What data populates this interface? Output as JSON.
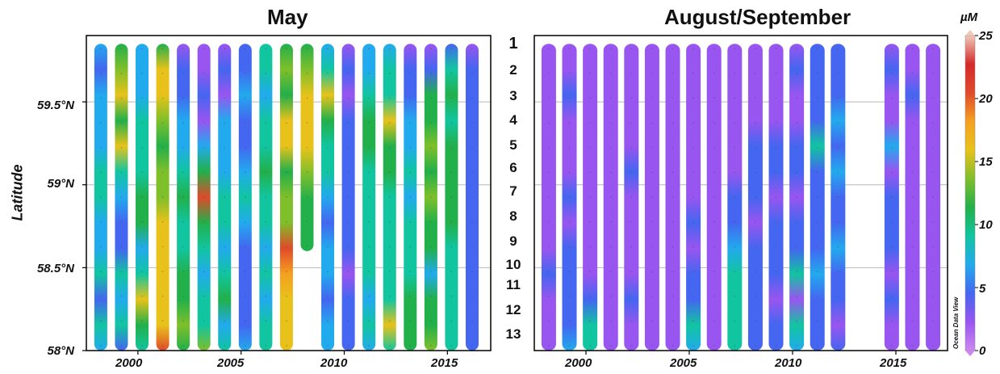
{
  "chart_data": [
    {
      "type": "heatmap",
      "title": "May",
      "ylabel": "Latitude",
      "ylim": [
        58.0,
        59.9
      ],
      "xlim": [
        1997.5,
        2017.1
      ],
      "yticks": [
        "59.5°N",
        "59°N",
        "58.5°N",
        "58°N"
      ],
      "ytick_values": [
        59.5,
        59.0,
        58.5,
        58.0
      ],
      "xticks": [
        "2000",
        "2005",
        "2010",
        "2015"
      ],
      "xtick_values": [
        2000,
        2005,
        2010,
        2015
      ],
      "grid": true,
      "columns": [
        {
          "year": 1998.2,
          "bottom": 58.0,
          "top": 59.85,
          "values": [
            6,
            5,
            6,
            7,
            6,
            8,
            9,
            7,
            6,
            9,
            5,
            10,
            6
          ]
        },
        {
          "year": 1999.2,
          "bottom": 58.0,
          "top": 59.85,
          "values": [
            12,
            14,
            15,
            12,
            15,
            9,
            6,
            5,
            5,
            10,
            7,
            9,
            5
          ]
        },
        {
          "year": 2000.2,
          "bottom": 58.0,
          "top": 59.85,
          "values": [
            6,
            7,
            6,
            9,
            8,
            10,
            11,
            12,
            7,
            9,
            15,
            12,
            10
          ]
        },
        {
          "year": 2001.2,
          "bottom": 58.0,
          "top": 59.85,
          "values": [
            12,
            17,
            15,
            14,
            12,
            14,
            13,
            16,
            17,
            17,
            17,
            16,
            20
          ]
        },
        {
          "year": 2002.2,
          "bottom": 58.0,
          "top": 59.85,
          "values": [
            3,
            5,
            4,
            7,
            6,
            9,
            11,
            10,
            8,
            12,
            11,
            13,
            12
          ]
        },
        {
          "year": 2003.2,
          "bottom": 58.0,
          "top": 59.85,
          "values": [
            2,
            3,
            4,
            3,
            7,
            11,
            21,
            12,
            9,
            7,
            10,
            9,
            13
          ]
        },
        {
          "year": 2004.2,
          "bottom": 58.0,
          "top": 59.85,
          "values": [
            3,
            4,
            3,
            7,
            6,
            7,
            8,
            9,
            7,
            8,
            12,
            6,
            8
          ]
        },
        {
          "year": 2005.2,
          "bottom": 58.0,
          "top": 59.85,
          "values": [
            4,
            5,
            6,
            4,
            5,
            7,
            9,
            6,
            5,
            5,
            4,
            5,
            6
          ]
        },
        {
          "year": 2006.2,
          "bottom": 58.0,
          "top": 59.85,
          "values": [
            8,
            9,
            7,
            8,
            10,
            12,
            10,
            9,
            7,
            9,
            6,
            8,
            9
          ]
        },
        {
          "year": 2007.2,
          "bottom": 58.0,
          "top": 59.85,
          "values": [
            11,
            13,
            12,
            17,
            15,
            12,
            13,
            14,
            21,
            19,
            17,
            17,
            17
          ]
        },
        {
          "year": 2008.2,
          "bottom": 58.6,
          "top": 59.85,
          "values": [
            12,
            14,
            15,
            16,
            15,
            13,
            12,
            12,
            11
          ]
        },
        {
          "year": 2009.2,
          "bottom": 58.0,
          "top": 59.85,
          "values": [
            6,
            9,
            16,
            12,
            10,
            8,
            6,
            5,
            7,
            6,
            5,
            6,
            7
          ]
        },
        {
          "year": 2010.2,
          "bottom": 58.0,
          "top": 59.85,
          "values": [
            3,
            4,
            3,
            4,
            4,
            5,
            4,
            5,
            4,
            3,
            4,
            5,
            4
          ]
        },
        {
          "year": 2011.2,
          "bottom": 58.0,
          "top": 59.85,
          "values": [
            6,
            7,
            9,
            12,
            11,
            9,
            10,
            8,
            8,
            9,
            7,
            8,
            7
          ]
        },
        {
          "year": 2012.2,
          "bottom": 58.0,
          "top": 59.85,
          "values": [
            7,
            8,
            10,
            16,
            12,
            11,
            10,
            9,
            8,
            9,
            10,
            17,
            8
          ]
        },
        {
          "year": 2013.2,
          "bottom": 58.0,
          "top": 59.85,
          "values": [
            3,
            4,
            5,
            6,
            7,
            8,
            7,
            8,
            9,
            10,
            12,
            12,
            11
          ]
        },
        {
          "year": 2014.2,
          "bottom": 58.0,
          "top": 59.85,
          "values": [
            3,
            5,
            11,
            12,
            13,
            12,
            13,
            12,
            11,
            6,
            12,
            12,
            13
          ]
        },
        {
          "year": 2015.2,
          "bottom": 58.0,
          "top": 59.85,
          "values": [
            5,
            9,
            11,
            10,
            11,
            12,
            12,
            11,
            10,
            9,
            10,
            10,
            9
          ]
        },
        {
          "year": 2016.2,
          "bottom": 58.0,
          "top": 59.85,
          "values": [
            3,
            4,
            5,
            4,
            5,
            5,
            4,
            5,
            4,
            4,
            5,
            5,
            4
          ]
        }
      ]
    },
    {
      "type": "heatmap",
      "title": "August/September",
      "ylim": [
        58.0,
        59.9
      ],
      "xlim": [
        1997.5,
        2017.5
      ],
      "xticks": [
        "2000",
        "2005",
        "2010",
        "2015"
      ],
      "xtick_values": [
        2000,
        2005,
        2010,
        2015
      ],
      "grid": true,
      "columns": [
        {
          "year": 1998.2,
          "bottom": 58.0,
          "top": 59.85,
          "values": [
            2,
            2,
            3,
            3,
            3,
            3,
            2,
            3,
            2,
            4,
            3,
            3,
            3
          ]
        },
        {
          "year": 1999.2,
          "bottom": 58.0,
          "top": 59.85,
          "values": [
            3,
            3,
            4,
            3,
            3,
            3,
            4,
            3,
            4,
            4,
            5,
            4,
            6
          ]
        },
        {
          "year": 2000.2,
          "bottom": 58.0,
          "top": 59.85,
          "values": [
            2,
            2,
            2,
            3,
            2,
            3,
            3,
            2,
            3,
            3,
            4,
            9,
            10
          ]
        },
        {
          "year": 2001.2,
          "bottom": 58.0,
          "top": 59.85,
          "values": [
            2,
            2,
            2,
            2,
            3,
            2,
            2,
            3,
            2,
            3,
            3,
            3,
            3
          ]
        },
        {
          "year": 2002.2,
          "bottom": 58.0,
          "top": 59.85,
          "values": [
            2,
            2,
            2,
            2,
            3,
            4,
            3,
            3,
            3,
            3,
            4,
            3,
            3
          ]
        },
        {
          "year": 2003.2,
          "bottom": 58.0,
          "top": 59.85,
          "values": [
            2,
            2,
            2,
            3,
            2,
            3,
            2,
            2,
            3,
            2,
            3,
            3,
            3
          ]
        },
        {
          "year": 2004.2,
          "bottom": 58.0,
          "top": 59.85,
          "values": [
            2,
            3,
            2,
            3,
            3,
            3,
            2,
            3,
            2,
            3,
            2,
            3,
            3
          ]
        },
        {
          "year": 2005.2,
          "bottom": 58.0,
          "top": 59.85,
          "values": [
            3,
            3,
            3,
            3,
            3,
            3,
            3,
            4,
            3,
            4,
            5,
            8,
            6
          ]
        },
        {
          "year": 2006.2,
          "bottom": 58.0,
          "top": 59.85,
          "values": [
            2,
            2,
            3,
            3,
            2,
            2,
            3,
            2,
            2,
            3,
            3,
            3,
            3
          ]
        },
        {
          "year": 2007.2,
          "bottom": 58.0,
          "top": 59.85,
          "values": [
            3,
            3,
            2,
            3,
            3,
            3,
            4,
            4,
            6,
            9,
            10,
            10,
            10
          ]
        },
        {
          "year": 2008.2,
          "bottom": 58.0,
          "top": 59.85,
          "values": [
            3,
            3,
            3,
            3,
            4,
            4,
            4,
            3,
            4,
            4,
            4,
            4,
            4
          ]
        },
        {
          "year": 2009.2,
          "bottom": 58.0,
          "top": 59.85,
          "values": [
            3,
            3,
            3,
            3,
            5,
            4,
            3,
            4,
            4,
            4,
            3,
            4,
            4
          ]
        },
        {
          "year": 2010.2,
          "bottom": 58.0,
          "top": 59.85,
          "values": [
            3,
            4,
            3,
            3,
            4,
            4,
            3,
            4,
            5,
            8,
            3,
            9,
            6
          ]
        },
        {
          "year": 2011.2,
          "bottom": 58.0,
          "top": 59.85,
          "values": [
            4,
            4,
            4,
            5,
            8,
            4,
            5,
            4,
            5,
            6,
            4,
            4,
            4
          ]
        },
        {
          "year": 2012.2,
          "bottom": 58.0,
          "top": 59.85,
          "values": [
            4,
            4,
            5,
            6,
            5,
            7,
            5,
            4,
            6,
            4,
            5,
            3,
            4
          ]
        },
        {
          "year": 2014.8,
          "bottom": 58.0,
          "top": 59.85,
          "values": [
            3,
            4,
            3,
            3,
            6,
            3,
            4,
            4,
            4,
            3,
            4,
            3,
            3
          ]
        },
        {
          "year": 2015.8,
          "bottom": 58.0,
          "top": 59.85,
          "values": [
            2,
            3,
            4,
            3,
            2,
            3,
            2,
            2,
            2,
            2,
            2,
            2,
            2
          ]
        },
        {
          "year": 2016.8,
          "bottom": 58.0,
          "top": 59.85,
          "values": [
            2,
            2,
            3,
            2,
            2,
            3,
            2,
            2,
            2,
            3,
            2,
            2,
            2
          ]
        }
      ]
    }
  ],
  "stations": {
    "labels": [
      "1",
      "2",
      "3",
      "4",
      "5",
      "6",
      "7",
      "8",
      "9",
      "10",
      "11",
      "12",
      "13"
    ],
    "latitudes": [
      59.86,
      59.67,
      59.55,
      59.4,
      59.24,
      59.1,
      58.96,
      58.8,
      58.65,
      58.5,
      58.38,
      58.23,
      58.08
    ]
  },
  "colorbar": {
    "unit": "µM",
    "min": 0,
    "max": 25,
    "tick_values": [
      0,
      5,
      10,
      15,
      20,
      25
    ],
    "tick_labels": [
      "0",
      "5",
      "10",
      "15",
      "20",
      "25"
    ],
    "colormap": [
      "#cc88ee",
      "#9955f0",
      "#4466f0",
      "#22aaee",
      "#11c5a0",
      "#22b04a",
      "#7fbf2a",
      "#e8c21a",
      "#f5a020",
      "#e04a2a",
      "#d52a2a",
      "#f0c8b8"
    ]
  },
  "credit": "Ocean Data View"
}
